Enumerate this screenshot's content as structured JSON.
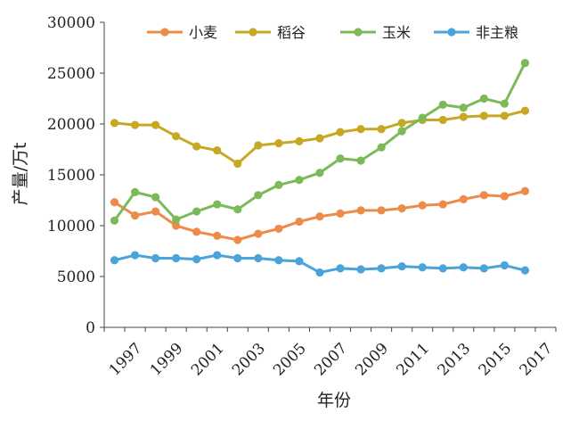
{
  "chart_data": {
    "type": "line",
    "title": "",
    "xlabel": "年份",
    "ylabel": "产量/万t",
    "x": [
      1996,
      1997,
      1998,
      1999,
      2000,
      2001,
      2002,
      2003,
      2004,
      2005,
      2006,
      2007,
      2008,
      2009,
      2010,
      2011,
      2012,
      2013,
      2014,
      2015,
      2016,
      2017
    ],
    "x_tick_labels": [
      "1997",
      "1999",
      "2001",
      "2003",
      "2005",
      "2007",
      "2009",
      "2011",
      "2013",
      "2015",
      "2017"
    ],
    "ylim": [
      0,
      30000
    ],
    "y_ticks": [
      0,
      5000,
      10000,
      15000,
      20000,
      25000,
      30000
    ],
    "legend_position": "top",
    "grid": false,
    "series": [
      {
        "name": "小麦",
        "color": "#ED8B4A",
        "values": [
          12300,
          11000,
          11400,
          10000,
          9400,
          9000,
          8600,
          9200,
          9700,
          10400,
          10900,
          11200,
          11500,
          11500,
          11700,
          12000,
          12100,
          12600,
          13000,
          12900,
          13400,
          null
        ]
      },
      {
        "name": "稻谷",
        "color": "#C7A824",
        "values": [
          20100,
          19900,
          19900,
          18800,
          17800,
          17400,
          16100,
          17900,
          18100,
          18300,
          18600,
          19200,
          19500,
          19500,
          20100,
          20400,
          20400,
          20700,
          20800,
          20800,
          21300,
          null
        ]
      },
      {
        "name": "玉米",
        "color": "#7CBA59",
        "values": [
          10500,
          13300,
          12800,
          10600,
          11400,
          12100,
          11600,
          13000,
          14000,
          14500,
          15200,
          16600,
          16400,
          17700,
          19300,
          20600,
          21900,
          21600,
          22500,
          22000,
          26000,
          null
        ]
      },
      {
        "name": "非主粮",
        "color": "#4AA3D9",
        "values": [
          6600,
          7100,
          6800,
          6800,
          6700,
          7100,
          6800,
          6800,
          6600,
          6500,
          5400,
          5800,
          5700,
          5800,
          6000,
          5900,
          5800,
          5900,
          5800,
          6100,
          5600,
          null
        ]
      }
    ]
  }
}
